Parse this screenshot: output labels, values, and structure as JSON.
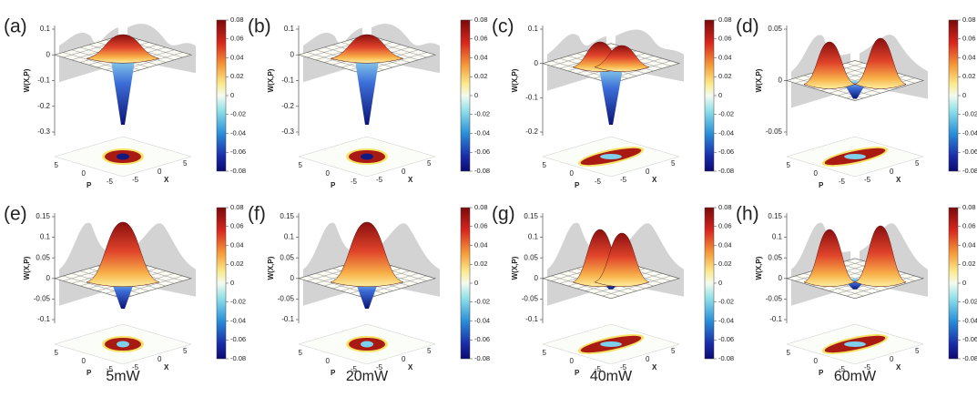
{
  "figure": {
    "axes": {
      "z_label": "W(X,P)",
      "p_label": "P",
      "x_label": "X",
      "p_ticks": [
        5,
        0,
        -5
      ],
      "x_ticks": [
        -5,
        0,
        5
      ],
      "colorbar_ticks": [
        0.08,
        0.06,
        0.04,
        0.02,
        0,
        -0.02,
        -0.04,
        -0.06,
        -0.08
      ]
    },
    "panels": [
      {
        "label": "(a)",
        "z_ticks": [
          0.1,
          0,
          -0.1,
          -0.2,
          -0.3
        ]
      },
      {
        "label": "(b)",
        "z_ticks": [
          0.1,
          0,
          -0.1,
          -0.2,
          -0.3
        ]
      },
      {
        "label": "(c)",
        "z_ticks": [
          0.1,
          0,
          -0.1,
          -0.2
        ]
      },
      {
        "label": "(d)",
        "z_ticks": [
          0.05,
          0,
          -0.05
        ]
      },
      {
        "label": "(e)",
        "z_ticks": [
          0.15,
          0.1,
          0.05,
          0,
          -0.05,
          -0.1
        ]
      },
      {
        "label": "(f)",
        "z_ticks": [
          0.15,
          0.1,
          0.05,
          0,
          -0.05,
          -0.1
        ]
      },
      {
        "label": "(g)",
        "z_ticks": [
          0.15,
          0.1,
          0.05,
          0,
          -0.05,
          -0.1
        ]
      },
      {
        "label": "(h)",
        "z_ticks": [
          0.15,
          0.1,
          0.05,
          0,
          -0.05,
          -0.1
        ]
      }
    ],
    "powers": [
      "5mW",
      "20mW",
      "40mW",
      "60mW"
    ]
  }
}
